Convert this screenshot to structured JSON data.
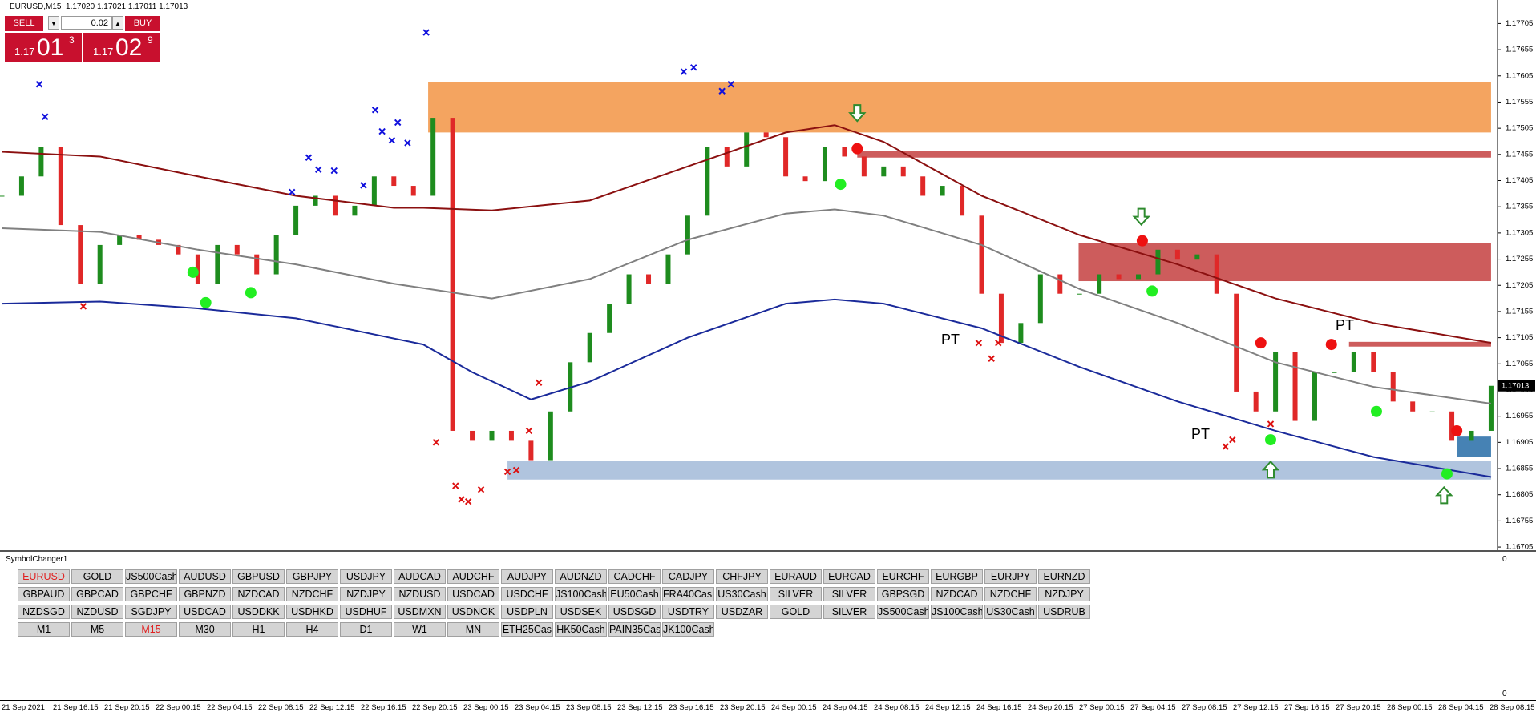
{
  "header": {
    "symbol": "EURUSD,M15",
    "open": "1.17020",
    "high": "1.17021",
    "low": "1.17011",
    "close": "1.17013"
  },
  "trade_panel": {
    "sell": "SELL",
    "lot": "0.02",
    "buy": "BUY",
    "bid_prefix": "1.17",
    "bid_big": "01",
    "bid_small": "3",
    "ask_prefix": "1.17",
    "ask_big": "02",
    "ask_small": "9"
  },
  "chart": {
    "ylim": [
      1.16699,
      1.1775
    ],
    "yticks": [
      1.16705,
      1.16755,
      1.16805,
      1.16855,
      1.16905,
      1.16955,
      1.17005,
      1.17055,
      1.17105,
      1.17155,
      1.17205,
      1.17255,
      1.17305,
      1.17355,
      1.17405,
      1.17455,
      1.17505,
      1.17555,
      1.17605,
      1.17655,
      1.17705
    ],
    "current_price": 1.17013,
    "closes": [
      1.17376,
      1.17413,
      1.17469,
      1.1732,
      1.17208,
      1.17282,
      1.17301,
      1.17292,
      1.17282,
      1.17264,
      1.17208,
      1.17282,
      1.17264,
      1.17226,
      1.17301,
      1.17357,
      1.17376,
      1.17338,
      1.17357,
      1.17413,
      1.17395,
      1.17376,
      1.17525,
      1.16927,
      1.16908,
      1.16927,
      1.16908,
      1.16871,
      1.16964,
      1.17058,
      1.17114,
      1.1717,
      1.17226,
      1.17208,
      1.17264,
      1.17338,
      1.17469,
      1.17432,
      1.17497,
      1.17488,
      1.17413,
      1.17404,
      1.17469,
      1.17451,
      1.17413,
      1.17432,
      1.17413,
      1.17376,
      1.17395,
      1.17338,
      1.17189,
      1.17095,
      1.17133,
      1.17226,
      1.17189,
      1.17189,
      1.17226,
      1.17217,
      1.17226,
      1.17273,
      1.17254,
      1.17264,
      1.17189,
      1.17002,
      1.16964,
      1.17077,
      1.16946,
      1.17039,
      1.17039,
      1.17077,
      1.17039,
      1.16983,
      1.16964,
      1.16964,
      1.16908,
      1.16927,
      1.17013
    ],
    "ma_upper": {
      "color": "#8b1010",
      "x": [
        0,
        5,
        10,
        15,
        20,
        21.5,
        25,
        30,
        35,
        40,
        42.5,
        45,
        50,
        55,
        60,
        65,
        70,
        76
      ],
      "values": [
        1.1746,
        1.17451,
        1.17413,
        1.17376,
        1.17353,
        1.17353,
        1.17348,
        1.17367,
        1.17432,
        1.17497,
        1.17511,
        1.17479,
        1.17376,
        1.17301,
        1.17245,
        1.1718,
        1.17133,
        1.17095
      ]
    },
    "ma_middle": {
      "color": "#808080",
      "x": [
        0,
        5,
        10,
        15,
        20,
        25,
        30,
        35,
        40,
        42.5,
        45,
        50,
        55,
        60,
        65,
        70,
        76
      ],
      "values": [
        1.17314,
        1.17307,
        1.17273,
        1.17245,
        1.17208,
        1.1718,
        1.17217,
        1.17292,
        1.17342,
        1.1735,
        1.17338,
        1.17282,
        1.17198,
        1.17133,
        1.17058,
        1.17011,
        1.16979
      ]
    },
    "ma_lower": {
      "color": "#1a2a9a",
      "x": [
        0,
        5,
        10,
        15,
        21.5,
        24,
        27,
        30,
        35,
        40,
        42.5,
        45,
        50,
        55,
        60,
        65,
        70,
        76
      ],
      "values": [
        1.1717,
        1.17174,
        1.17161,
        1.17142,
        1.17092,
        1.17039,
        1.16987,
        1.17021,
        1.17105,
        1.1717,
        1.17178,
        1.1717,
        1.17123,
        1.17049,
        1.16983,
        1.16927,
        1.16877,
        1.16839
      ]
    },
    "zones": [
      {
        "color": "#f4a460",
        "x": [
          21.75,
          76
        ],
        "values": [
          1.17593,
          1.17497
        ]
      },
      {
        "color": "#cd5c5c",
        "x": [
          43.65,
          76
        ],
        "values": [
          1.17462,
          1.17449
        ]
      },
      {
        "color": "#cd5c5c",
        "x": [
          54.95,
          76
        ],
        "values": [
          1.17286,
          1.17213
        ]
      },
      {
        "color": "#b0c4de",
        "x": [
          25.8,
          76
        ],
        "values": [
          1.16869,
          1.16834
        ]
      },
      {
        "color": "#cd5c5c",
        "x": [
          68.75,
          76
        ],
        "values": [
          1.17097,
          1.17088
        ]
      },
      {
        "color": "#4682b4",
        "x": [
          74.25,
          76
        ],
        "values": [
          1.16916,
          1.16878
        ]
      }
    ],
    "green_dots": {
      "color": "#22ee22",
      "x": [
        9.75,
        10.4,
        12.7,
        42.8,
        58.7,
        64.75,
        70.15,
        73.75
      ],
      "values": [
        1.1723,
        1.17172,
        1.17191,
        1.17398,
        1.17194,
        1.1691,
        1.16964,
        1.16845
      ]
    },
    "red_dots": {
      "color": "#ee1111",
      "x": [
        43.65,
        58.2,
        64.25,
        67.85,
        74.25
      ],
      "values": [
        1.17466,
        1.1729,
        1.17095,
        1.17092,
        1.16927
      ]
    },
    "blue_crosses": {
      "color": "#1010dd",
      "x": [
        1.9,
        2.2,
        14.8,
        15.65,
        16.15,
        16.95,
        18.45,
        19.05,
        19.4,
        19.9,
        20.2,
        20.7,
        21.65,
        34.8,
        35.3,
        36.75,
        37.2
      ],
      "values": [
        1.17589,
        1.17527,
        1.17383,
        1.17449,
        1.17426,
        1.17424,
        1.17396,
        1.1754,
        1.17499,
        1.17482,
        1.17516,
        1.17477,
        1.17688,
        1.17613,
        1.17621,
        1.17576,
        1.17589
      ]
    },
    "red_crosses": {
      "color": "#dd1010",
      "x": [
        4.15,
        22.15,
        23.15,
        23.45,
        23.8,
        24.45,
        25.8,
        26.25,
        26.9,
        27.4,
        49.85,
        50.5,
        50.85,
        62.45,
        62.8,
        64.75
      ],
      "values": [
        1.17165,
        1.16905,
        1.16822,
        1.16796,
        1.16792,
        1.16815,
        1.16849,
        1.16852,
        1.16927,
        1.17019,
        1.17095,
        1.17065,
        1.17095,
        1.16897,
        1.1691,
        1.1694
      ]
    },
    "down_arrows": {
      "color": "#2e8b2e",
      "x": [
        43.65,
        58.15
      ],
      "values": [
        1.17531,
        1.17333
      ]
    },
    "up_arrows": {
      "color": "#2e8b2e",
      "x": [
        64.75,
        73.6
      ],
      "values": [
        1.16856,
        1.16807
      ]
    },
    "pt_labels": [
      "PT",
      "PT",
      "PT"
    ],
    "time_labels": [
      "21 Sep 2021",
      "21 Sep 16:15",
      "21 Sep 20:15",
      "22 Sep 00:15",
      "22 Sep 04:15",
      "22 Sep 08:15",
      "22 Sep 12:15",
      "22 Sep 16:15",
      "22 Sep 20:15",
      "23 Sep 00:15",
      "23 Sep 04:15",
      "23 Sep 08:15",
      "23 Sep 12:15",
      "23 Sep 16:15",
      "23 Sep 20:15",
      "24 Sep 00:15",
      "24 Sep 04:15",
      "24 Sep 08:15",
      "24 Sep 12:15",
      "24 Sep 16:15",
      "24 Sep 20:15",
      "27 Sep 00:15",
      "27 Sep 04:15",
      "27 Sep 08:15",
      "27 Sep 12:15",
      "27 Sep 16:15",
      "27 Sep 20:15",
      "28 Sep 00:15",
      "28 Sep 04:15",
      "28 Sep 08:15"
    ]
  },
  "symbol_changer": {
    "title": "SymbolChanger1",
    "axis_top": 0,
    "axis_bottom": 0,
    "rows": [
      [
        "EURUSD",
        "GOLD",
        "JS500Cash",
        "AUDUSD",
        "GBPUSD",
        "GBPJPY",
        "USDJPY",
        "AUDCAD",
        "AUDCHF",
        "AUDJPY",
        "AUDNZD",
        "CADCHF",
        "CADJPY",
        "CHFJPY",
        "EURAUD",
        "EURCAD",
        "EURCHF",
        "EURGBP",
        "EURJPY",
        "EURNZD"
      ],
      [
        "GBPAUD",
        "GBPCAD",
        "GBPCHF",
        "GBPNZD",
        "NZDCAD",
        "NZDCHF",
        "NZDJPY",
        "NZDUSD",
        "USDCAD",
        "USDCHF",
        "JS100Cash",
        "EU50Cash",
        "FRA40Cash",
        "US30Cash",
        "SILVER",
        "SILVER",
        "GBPSGD",
        "NZDCAD",
        "NZDCHF",
        "NZDJPY"
      ],
      [
        "NZDSGD",
        "NZDUSD",
        "SGDJPY",
        "USDCAD",
        "USDDKK",
        "USDHKD",
        "USDHUF",
        "USDMXN",
        "USDNOK",
        "USDPLN",
        "USDSEK",
        "USDSGD",
        "USDTRY",
        "USDZAR",
        "GOLD",
        "SILVER",
        "JS500Cash",
        "JS100Cash",
        "US30Cash",
        "USDRUB"
      ],
      [
        "M1",
        "M5",
        "M15",
        "M30",
        "H1",
        "H4",
        "D1",
        "W1",
        "MN",
        "ETH25Cas",
        "HK50Cash",
        "PAIN35Cas",
        "JK100Cash"
      ]
    ]
  }
}
